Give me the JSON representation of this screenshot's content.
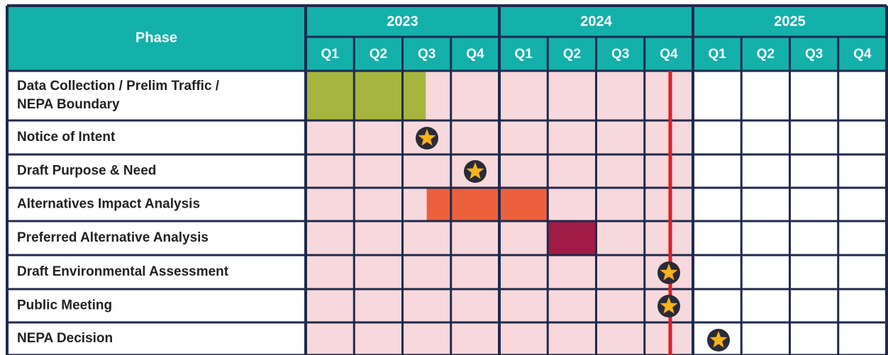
{
  "header": {
    "phase": "Phase",
    "years": [
      "2023",
      "2024",
      "2025"
    ],
    "quarters": [
      "Q1",
      "Q2",
      "Q3",
      "Q4"
    ]
  },
  "rows": [
    [
      "Data Collection / Prelim Traffic /",
      "NEPA Boundary"
    ],
    [
      "Notice of Intent"
    ],
    [
      "Draft Purpose & Need"
    ],
    [
      "Alternatives Impact Analysis"
    ],
    [
      "Preferred Alternative Analysis"
    ],
    [
      "Draft Environmental Assessment"
    ],
    [
      "Public Meeting"
    ],
    [
      "NEPA Decision"
    ]
  ]
}
